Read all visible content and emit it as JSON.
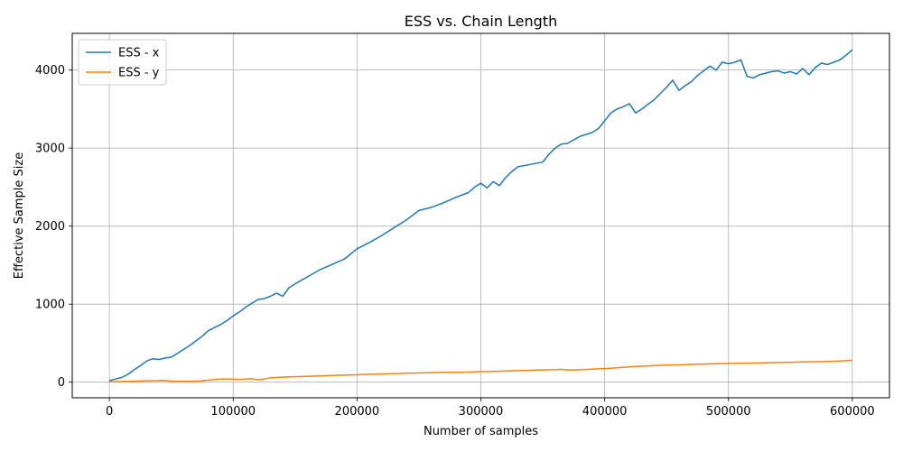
{
  "chart_data": {
    "type": "line",
    "title": "ESS vs. Chain Length",
    "xlabel": "Number of samples",
    "ylabel": "Effective Sample Size",
    "xlim": [
      -30000,
      630000
    ],
    "ylim": [
      -200,
      4470
    ],
    "xticks": [
      0,
      100000,
      200000,
      300000,
      400000,
      500000,
      600000
    ],
    "xtick_labels": [
      "0",
      "100000",
      "200000",
      "300000",
      "400000",
      "500000",
      "600000"
    ],
    "yticks": [
      0,
      1000,
      2000,
      3000,
      4000
    ],
    "ytick_labels": [
      "0",
      "1000",
      "2000",
      "3000",
      "4000"
    ],
    "grid": true,
    "legend_location": "upper-left",
    "series": [
      {
        "name": "ESS - x",
        "color": "#1f77b4",
        "x": [
          0,
          5000,
          10000,
          15000,
          20000,
          25000,
          30000,
          35000,
          40000,
          45000,
          50000,
          55000,
          60000,
          65000,
          70000,
          75000,
          80000,
          85000,
          90000,
          95000,
          100000,
          105000,
          110000,
          115000,
          120000,
          125000,
          130000,
          135000,
          140000,
          145000,
          150000,
          160000,
          170000,
          180000,
          190000,
          200000,
          210000,
          220000,
          230000,
          240000,
          250000,
          260000,
          270000,
          280000,
          290000,
          295000,
          300000,
          305000,
          310000,
          315000,
          320000,
          325000,
          330000,
          340000,
          350000,
          355000,
          360000,
          365000,
          370000,
          380000,
          390000,
          395000,
          400000,
          405000,
          410000,
          415000,
          420000,
          425000,
          430000,
          435000,
          440000,
          445000,
          450000,
          455000,
          460000,
          465000,
          470000,
          475000,
          480000,
          485000,
          490000,
          495000,
          500000,
          505000,
          510000,
          515000,
          520000,
          525000,
          530000,
          535000,
          540000,
          545000,
          550000,
          555000,
          560000,
          565000,
          570000,
          575000,
          580000,
          585000,
          590000,
          595000,
          600000
        ],
        "values": [
          20,
          40,
          60,
          100,
          160,
          210,
          270,
          300,
          290,
          310,
          320,
          370,
          420,
          470,
          530,
          590,
          660,
          700,
          740,
          790,
          850,
          900,
          960,
          1010,
          1060,
          1070,
          1100,
          1140,
          1100,
          1210,
          1260,
          1350,
          1440,
          1510,
          1580,
          1710,
          1790,
          1880,
          1980,
          2080,
          2200,
          2240,
          2300,
          2370,
          2430,
          2500,
          2550,
          2490,
          2570,
          2520,
          2620,
          2700,
          2760,
          2790,
          2820,
          2920,
          3000,
          3050,
          3060,
          3150,
          3200,
          3250,
          3350,
          3450,
          3500,
          3530,
          3570,
          3450,
          3500,
          3560,
          3620,
          3700,
          3780,
          3870,
          3740,
          3800,
          3850,
          3930,
          3990,
          4050,
          4000,
          4100,
          4080,
          4100,
          4130,
          3920,
          3900,
          3940,
          3960,
          3980,
          3990,
          3960,
          3980,
          3950,
          4020,
          3940,
          4030,
          4090,
          4070,
          4100,
          4130,
          4190,
          4260
        ]
      },
      {
        "name": "ESS - y",
        "color": "#ff7f0e",
        "x": [
          0,
          10000,
          20000,
          30000,
          40000,
          45000,
          50000,
          60000,
          70000,
          75000,
          80000,
          85000,
          90000,
          95000,
          100000,
          105000,
          110000,
          115000,
          120000,
          125000,
          130000,
          140000,
          150000,
          160000,
          170000,
          180000,
          190000,
          200000,
          210000,
          220000,
          230000,
          240000,
          250000,
          260000,
          270000,
          280000,
          290000,
          300000,
          310000,
          320000,
          330000,
          340000,
          350000,
          360000,
          365000,
          370000,
          380000,
          390000,
          400000,
          410000,
          420000,
          430000,
          440000,
          450000,
          460000,
          470000,
          480000,
          490000,
          500000,
          510000,
          520000,
          530000,
          540000,
          550000,
          560000,
          570000,
          580000,
          590000,
          600000
        ],
        "values": [
          5,
          8,
          12,
          18,
          20,
          22,
          12,
          10,
          12,
          18,
          25,
          35,
          40,
          42,
          38,
          35,
          40,
          45,
          30,
          40,
          55,
          65,
          70,
          75,
          80,
          85,
          90,
          95,
          100,
          105,
          110,
          115,
          118,
          122,
          125,
          128,
          130,
          135,
          138,
          142,
          148,
          152,
          158,
          160,
          165,
          155,
          160,
          168,
          175,
          185,
          195,
          205,
          212,
          218,
          222,
          228,
          232,
          236,
          240,
          242,
          245,
          248,
          252,
          255,
          260,
          262,
          266,
          272,
          280
        ]
      }
    ]
  }
}
